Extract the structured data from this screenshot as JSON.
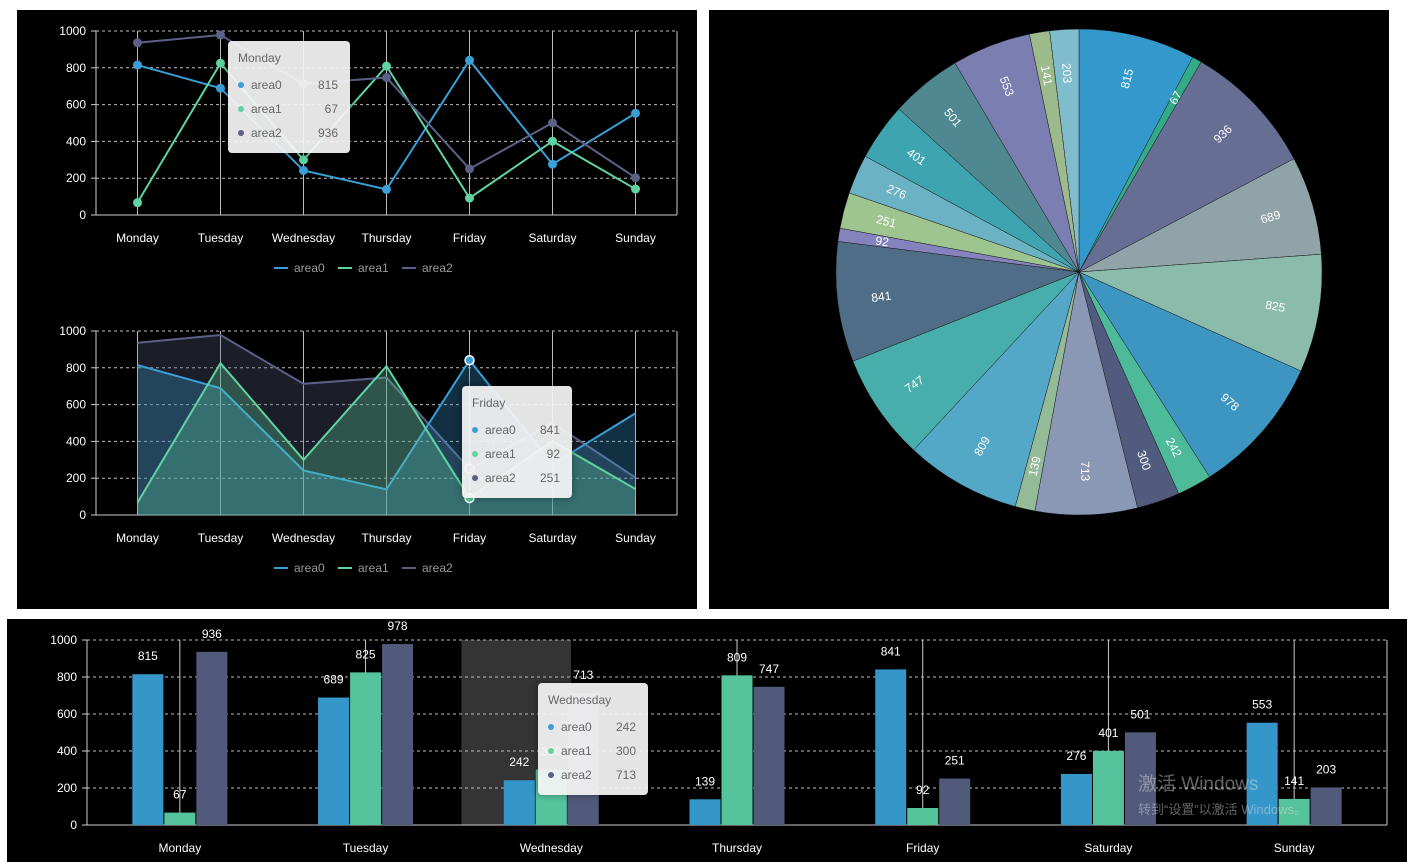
{
  "chart_data": [
    {
      "type": "line",
      "categories": [
        "Monday",
        "Tuesday",
        "Wednesday",
        "Thursday",
        "Friday",
        "Saturday",
        "Sunday"
      ],
      "series": [
        {
          "name": "area0",
          "values": [
            815,
            689,
            242,
            139,
            841,
            276,
            553
          ]
        },
        {
          "name": "area1",
          "values": [
            67,
            825,
            300,
            809,
            92,
            401,
            141
          ]
        },
        {
          "name": "area2",
          "values": [
            936,
            978,
            713,
            747,
            251,
            501,
            203
          ]
        }
      ],
      "ylim": [
        0,
        1000
      ],
      "yticks": [
        0,
        200,
        400,
        600,
        800,
        1000
      ],
      "grid": true,
      "legend": "bottom",
      "tooltip": {
        "title": "Monday",
        "rows": [
          {
            "name": "area0",
            "value": "815"
          },
          {
            "name": "area1",
            "value": "67"
          },
          {
            "name": "area2",
            "value": "936"
          }
        ]
      }
    },
    {
      "type": "area",
      "categories": [
        "Monday",
        "Tuesday",
        "Wednesday",
        "Thursday",
        "Friday",
        "Saturday",
        "Sunday"
      ],
      "series": [
        {
          "name": "area0",
          "values": [
            815,
            689,
            242,
            139,
            841,
            276,
            553
          ]
        },
        {
          "name": "area1",
          "values": [
            67,
            825,
            300,
            809,
            92,
            401,
            141
          ]
        },
        {
          "name": "area2",
          "values": [
            936,
            978,
            713,
            747,
            251,
            501,
            203
          ]
        }
      ],
      "ylim": [
        0,
        1000
      ],
      "yticks": [
        0,
        200,
        400,
        600,
        800,
        1000
      ],
      "grid": true,
      "legend": "bottom",
      "tooltip": {
        "title": "Friday",
        "rows": [
          {
            "name": "area0",
            "value": "841"
          },
          {
            "name": "area1",
            "value": "92"
          },
          {
            "name": "area2",
            "value": "251"
          }
        ]
      }
    },
    {
      "type": "pie",
      "slices": [
        {
          "value": 815,
          "color": "#3399cc"
        },
        {
          "value": 67,
          "color": "#33aa88"
        },
        {
          "value": 936,
          "color": "#666e93"
        },
        {
          "value": 689,
          "color": "#8fa3a8"
        },
        {
          "value": 825,
          "color": "#8bbbaa"
        },
        {
          "value": 978,
          "color": "#3d96c2"
        },
        {
          "value": 242,
          "color": "#4dbb99"
        },
        {
          "value": 300,
          "color": "#515b7d"
        },
        {
          "value": 713,
          "color": "#8a98b6"
        },
        {
          "value": 139,
          "color": "#93bb98"
        },
        {
          "value": 809,
          "color": "#52a8c6"
        },
        {
          "value": 747,
          "color": "#48aeac"
        },
        {
          "value": 841,
          "color": "#4f6d86"
        },
        {
          "value": 92,
          "color": "#8583bd"
        },
        {
          "value": 251,
          "color": "#9ec490"
        },
        {
          "value": 276,
          "color": "#6ab2c4"
        },
        {
          "value": 401,
          "color": "#3ea5b0"
        },
        {
          "value": 501,
          "color": "#4f8890"
        },
        {
          "value": 553,
          "color": "#7a7eb0"
        },
        {
          "value": 141,
          "color": "#9cba8c"
        },
        {
          "value": 203,
          "color": "#7fbccc"
        }
      ]
    },
    {
      "type": "bar",
      "categories": [
        "Monday",
        "Tuesday",
        "Wednesday",
        "Thursday",
        "Friday",
        "Saturday",
        "Sunday"
      ],
      "series": [
        {
          "name": "area0",
          "values": [
            815,
            689,
            242,
            139,
            841,
            276,
            553
          ]
        },
        {
          "name": "area1",
          "values": [
            67,
            825,
            300,
            809,
            92,
            401,
            141
          ]
        },
        {
          "name": "area2",
          "values": [
            936,
            978,
            713,
            747,
            251,
            501,
            203
          ]
        }
      ],
      "ylim": [
        0,
        1000
      ],
      "yticks": [
        0,
        200,
        400,
        600,
        800,
        1000
      ],
      "grid": true,
      "data_labels": true,
      "highlighted_category": "Wednesday",
      "tooltip": {
        "title": "Wednesday",
        "rows": [
          {
            "name": "area0",
            "value": "242"
          },
          {
            "name": "area1",
            "value": "300"
          },
          {
            "name": "area2",
            "value": "713"
          }
        ]
      }
    }
  ],
  "colors": {
    "area0": "#3a9fd6",
    "area1": "#5fd3a0",
    "area2": "#5b6186",
    "axis": "#cccccc",
    "grid": "#bbbbbb",
    "legend_text": "#999999"
  },
  "watermark": {
    "line1": "激活 Windows",
    "line2": "转到“设置”以激活 Windows。"
  }
}
